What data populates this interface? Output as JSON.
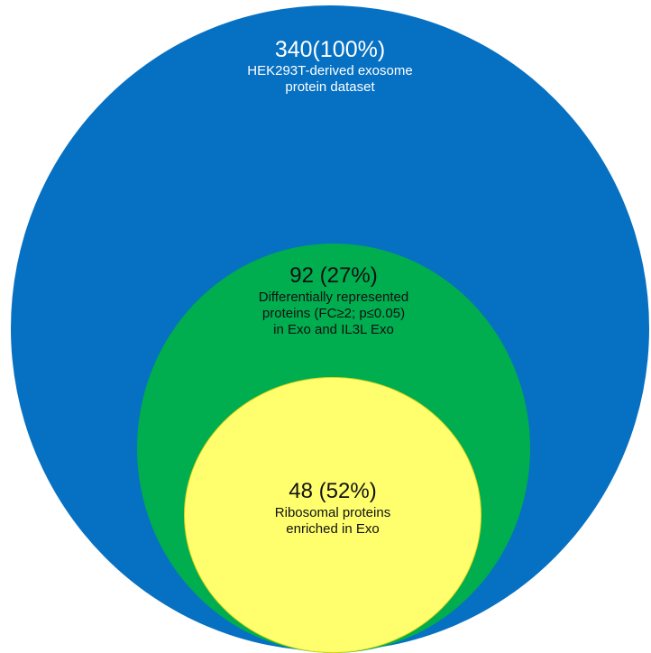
{
  "diagram": {
    "type": "nested-circles",
    "colors": {
      "outer": "#0670c2",
      "middle": "#00ad4f",
      "inner": "#ffff6e",
      "outer_text": "#ffffff",
      "middle_text": "#111111",
      "inner_text": "#111111"
    },
    "circles": [
      {
        "count": "340(100%)",
        "description": "HEK293T-derived exosome\nprotein dataset"
      },
      {
        "count": "92 (27%)",
        "description": "Differentially represented\nproteins (FC≥2; p≤0.05)\nin Exo and IL3L Exo"
      },
      {
        "count": "48 (52%)",
        "description": "Ribosomal proteins\nenriched in Exo"
      }
    ]
  }
}
